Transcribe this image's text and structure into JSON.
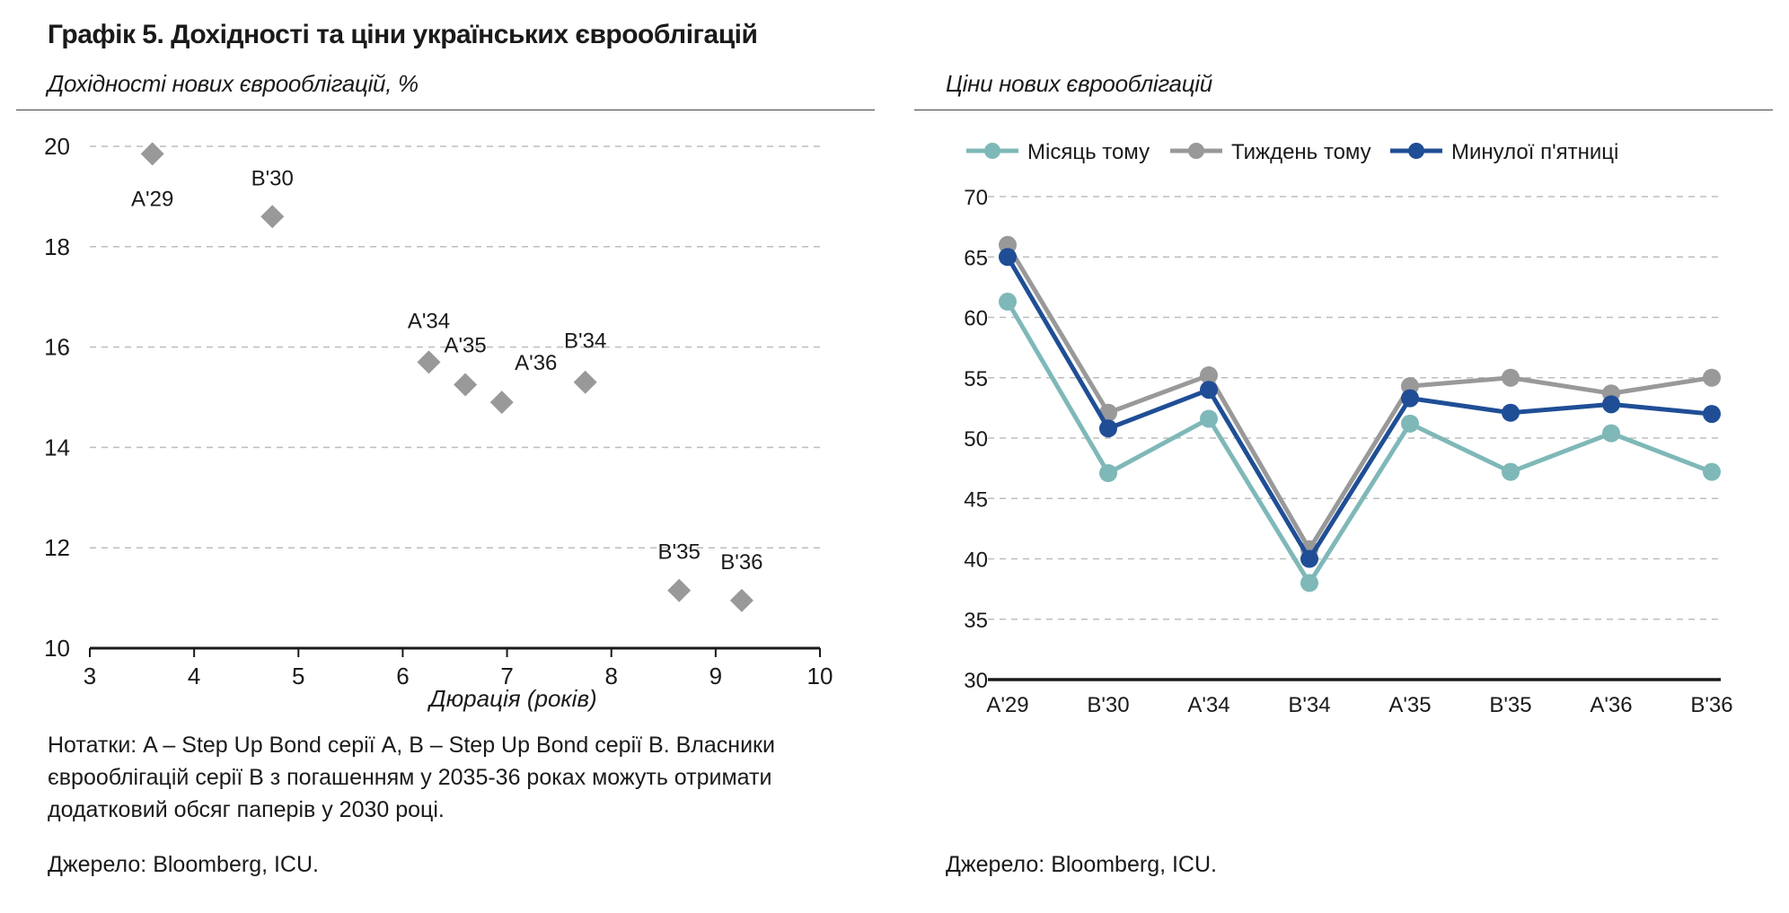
{
  "title": "Графік 5. Дохідності та ціни українських єврооблігацій",
  "left_subtitle": "Дохідності нових єврооблігацій, %",
  "right_subtitle": "Ціни нових єврооблігацій",
  "notes": "Нотатки: A – Step Up Bond серії A, B – Step Up Bond серії B. Власники єврооблігацій серії B з погашенням у 2035-36 роках можуть отримати додатковий обсяг паперів у 2030 році.",
  "source_left": "Джерело: Bloomberg, ICU.",
  "source_right": "Джерело: Bloomberg, ICU.",
  "chart_data": [
    {
      "type": "scatter",
      "title": "Дохідності нових єврооблігацій, %",
      "xlabel": "Дюрація (років)",
      "ylabel": "",
      "xlim": [
        3,
        10
      ],
      "ylim": [
        10,
        20
      ],
      "xticks": [
        3,
        4,
        5,
        6,
        7,
        8,
        9,
        10
      ],
      "yticks": [
        10,
        12,
        14,
        16,
        18,
        20
      ],
      "grid": "horizontal dashed",
      "marker_color": "#999999",
      "points": [
        {
          "label": "A'29",
          "x": 3.6,
          "y": 19.85
        },
        {
          "label": "B'30",
          "x": 4.75,
          "y": 18.6
        },
        {
          "label": "A'34",
          "x": 6.25,
          "y": 15.7
        },
        {
          "label": "A'35",
          "x": 6.6,
          "y": 15.25
        },
        {
          "label": "A'36",
          "x": 6.95,
          "y": 14.9
        },
        {
          "label": "B'34",
          "x": 7.75,
          "y": 15.3
        },
        {
          "label": "B'35",
          "x": 8.65,
          "y": 11.15
        },
        {
          "label": "B'36",
          "x": 9.25,
          "y": 10.95
        }
      ]
    },
    {
      "type": "line",
      "title": "Ціни нових єврооблігацій",
      "categories": [
        "A'29",
        "B'30",
        "A'34",
        "B'34",
        "A'35",
        "B'35",
        "A'36",
        "B'36"
      ],
      "ylim": [
        30,
        70
      ],
      "yticks": [
        30,
        35,
        40,
        45,
        50,
        55,
        60,
        65,
        70
      ],
      "grid": "horizontal dashed",
      "legend": "top",
      "series": [
        {
          "name": "Місяць тому",
          "color": "#7fb8b8",
          "values": [
            61.3,
            47.1,
            51.6,
            38.0,
            51.2,
            47.2,
            50.4,
            47.2
          ]
        },
        {
          "name": "Тиждень тому",
          "color": "#999999",
          "values": [
            66.0,
            52.1,
            55.2,
            40.8,
            54.3,
            55.0,
            53.7,
            55.0
          ]
        },
        {
          "name": "Минулої п'ятниці",
          "color": "#1f4e96",
          "values": [
            65.0,
            50.8,
            54.0,
            40.0,
            53.3,
            52.1,
            52.8,
            52.0
          ]
        }
      ]
    }
  ]
}
